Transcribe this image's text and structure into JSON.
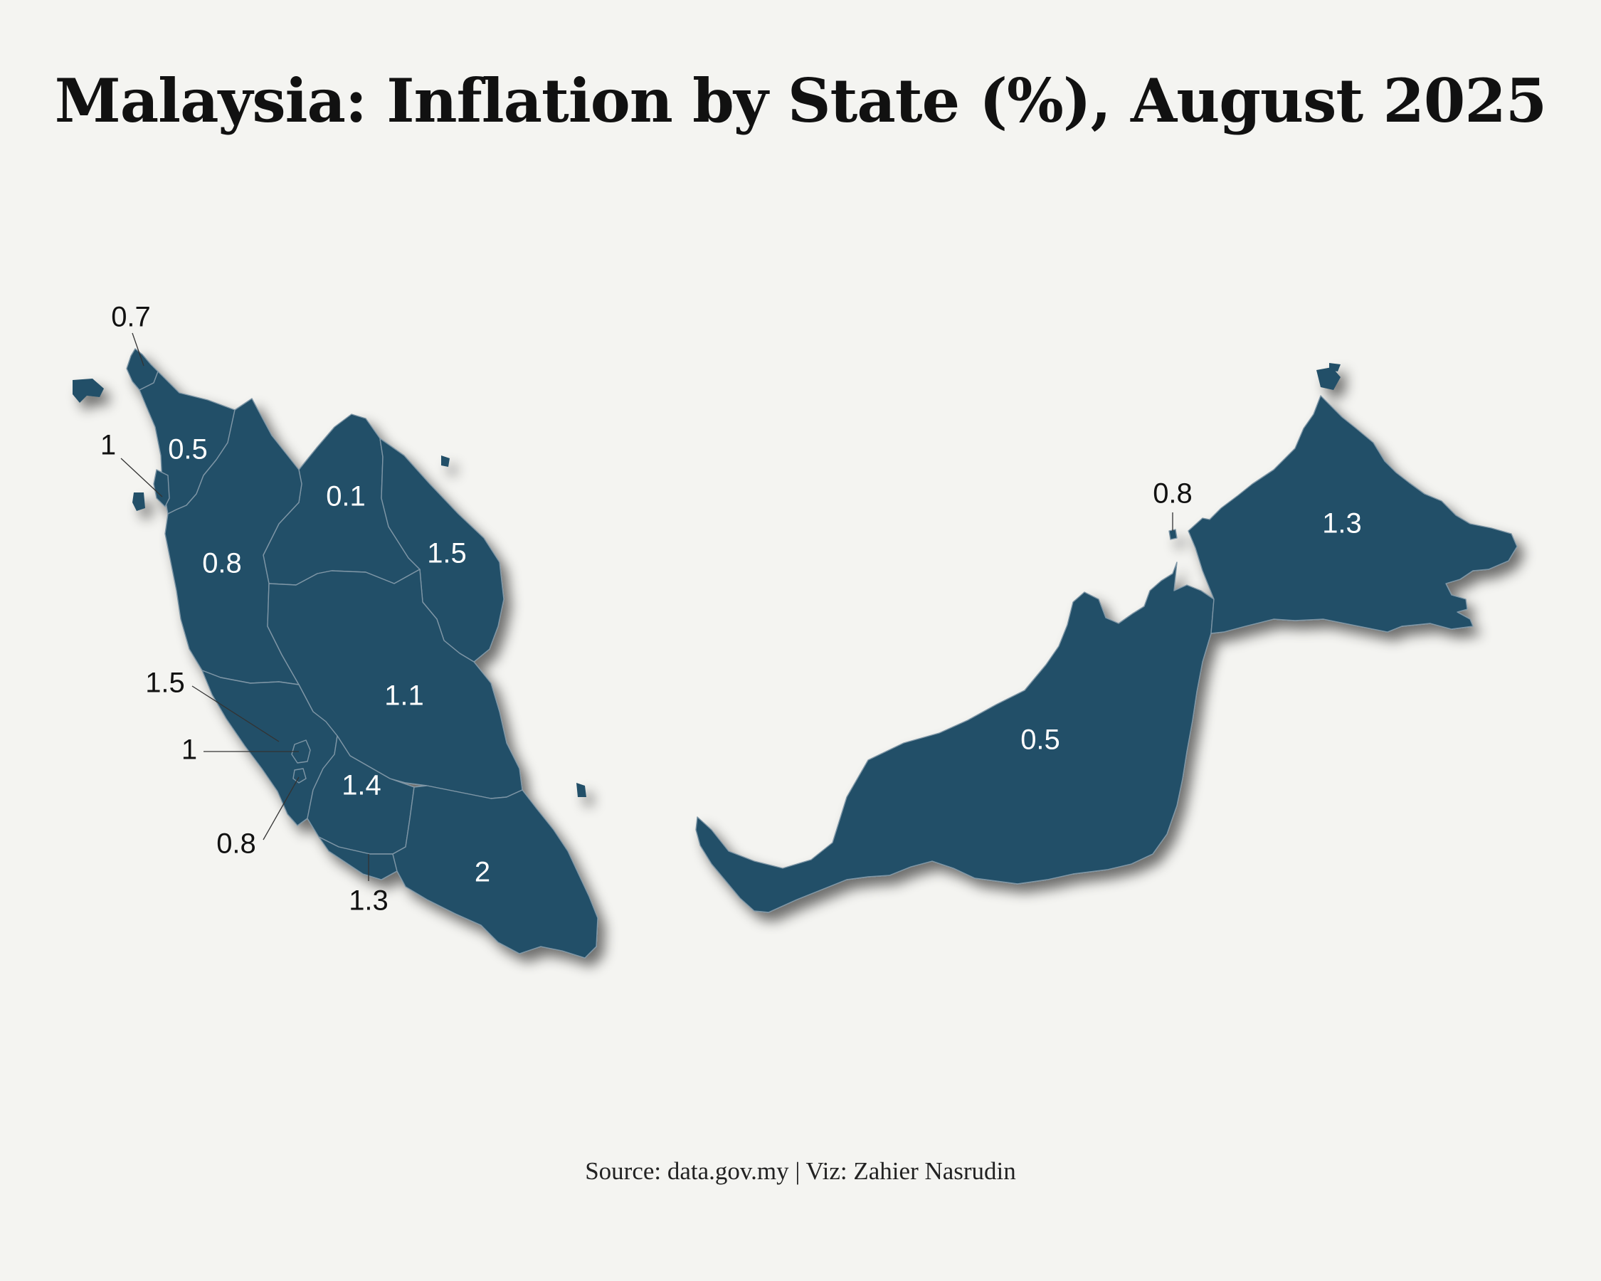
{
  "title": "Malaysia: Inflation by State (%), August 2025",
  "source": "Source: data.gov.my | Viz: Zahier Nasrudin",
  "colors": {
    "background": "#f4f4f1",
    "state_fill": "#244f67",
    "border": "#7e96a6",
    "label_inside": "#ffffff",
    "label_outside": "#111111"
  },
  "chart_data": {
    "type": "choropleth-map",
    "unit": "%",
    "states": [
      {
        "id": "perlis",
        "value": "0.7"
      },
      {
        "id": "kedah",
        "value": "0.5"
      },
      {
        "id": "penang",
        "value": "1"
      },
      {
        "id": "kelantan",
        "value": "0.1"
      },
      {
        "id": "terengganu",
        "value": "1.5"
      },
      {
        "id": "perak",
        "value": "0.8"
      },
      {
        "id": "pahang",
        "value": "1.1"
      },
      {
        "id": "selangor",
        "value": "1.5"
      },
      {
        "id": "kuala-lumpur",
        "value": "1"
      },
      {
        "id": "putrajaya",
        "value": "0.8"
      },
      {
        "id": "negeri-sembilan",
        "value": "1.4"
      },
      {
        "id": "melaka",
        "value": "1.3"
      },
      {
        "id": "johor",
        "value": "2"
      },
      {
        "id": "sarawak",
        "value": "0.5"
      },
      {
        "id": "labuan",
        "value": "0.8"
      },
      {
        "id": "sabah",
        "value": "1.3"
      }
    ]
  }
}
